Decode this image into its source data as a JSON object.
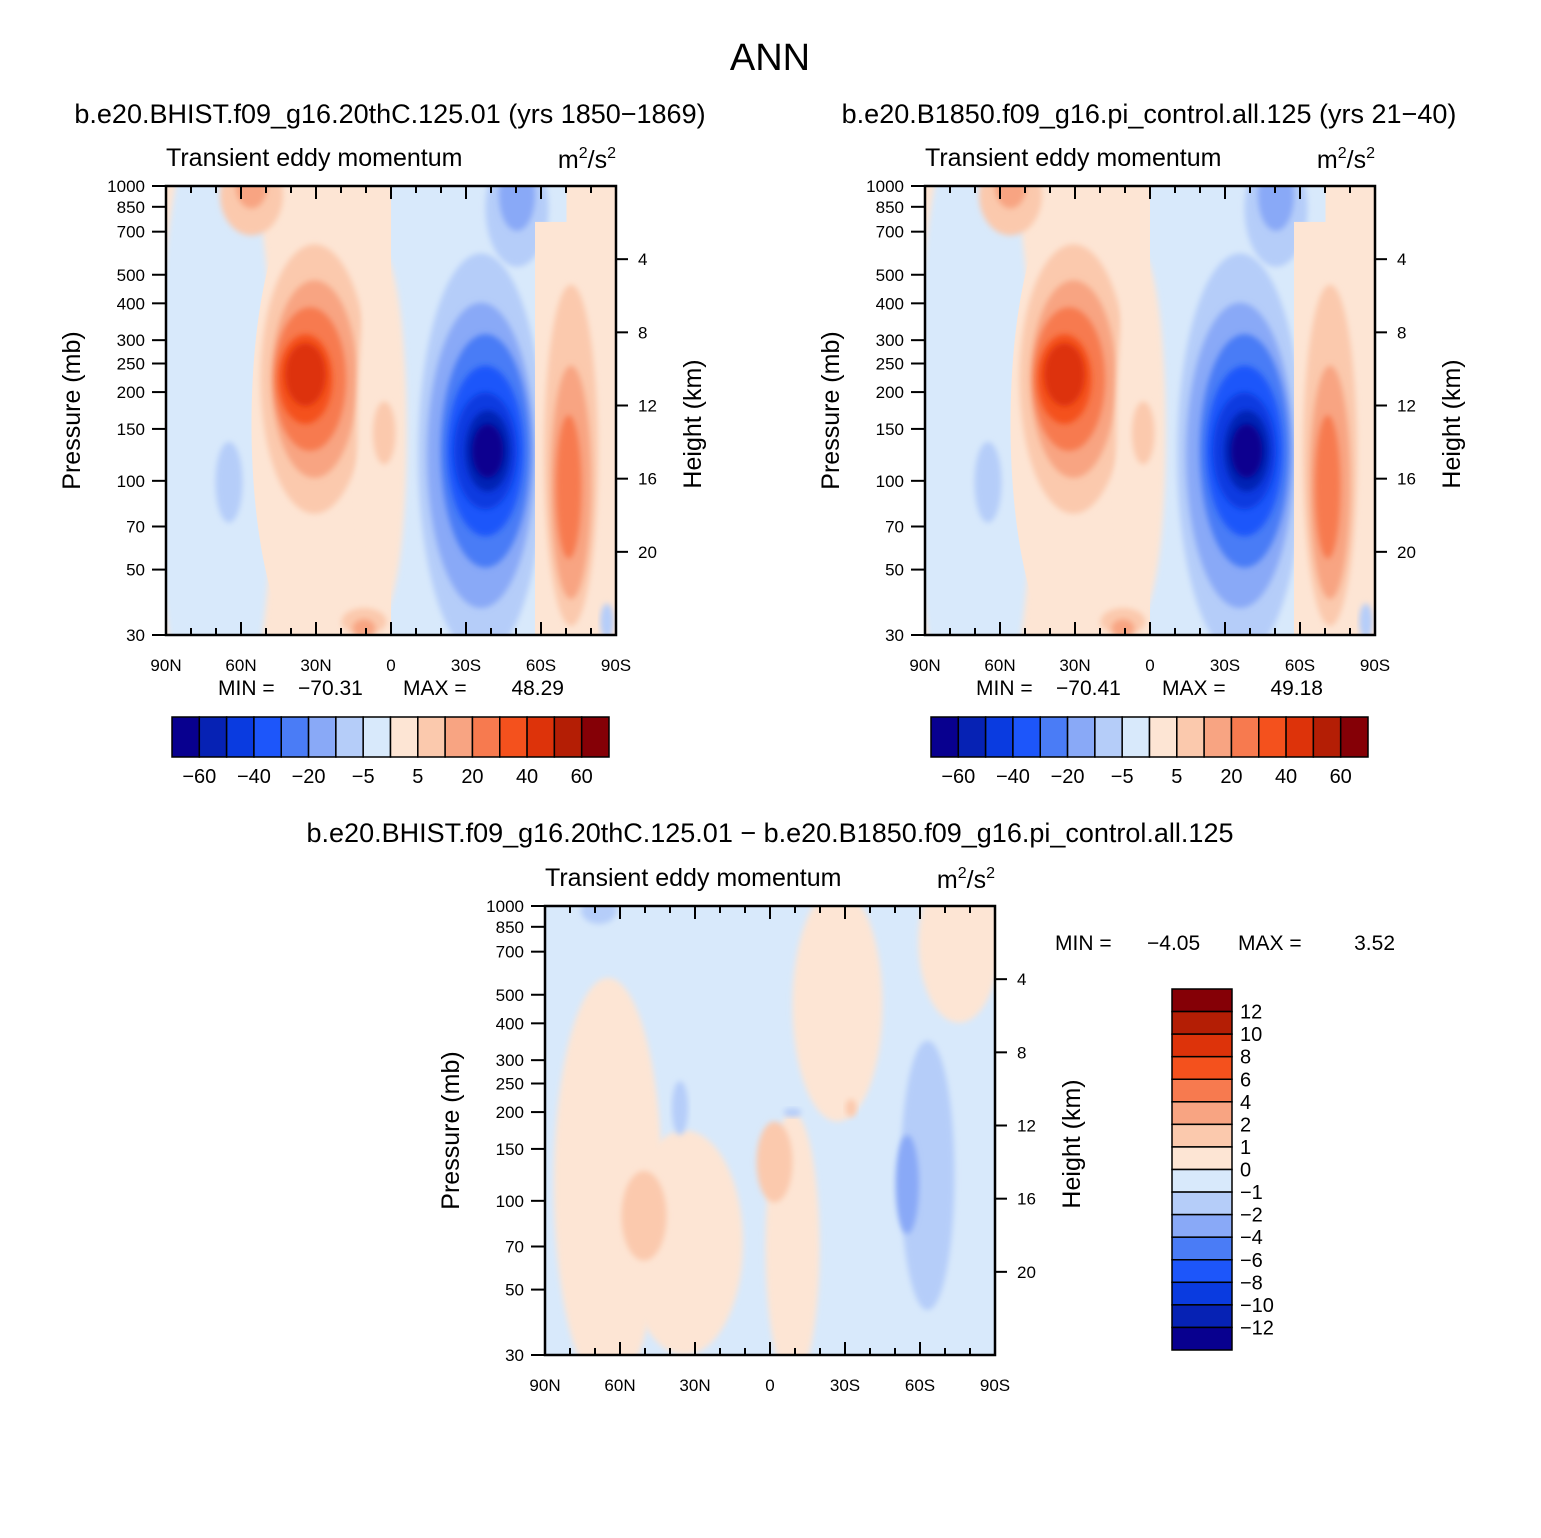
{
  "figure": {
    "title": "ANN"
  },
  "panels": [
    {
      "id": "test",
      "case_title": "b.e20.BHIST.f09_g16.20thC.125.01 (yrs 1850−1869)",
      "variable": "Transient eddy momentum",
      "units_base": "m",
      "units_mid": "/s",
      "units_sup": "2",
      "ylabel": "Pressure (mb)",
      "ylabel_right": "Height (km)",
      "stats": {
        "min_label": "MIN =",
        "min": "−70.31",
        "max_label": "MAX =",
        "max": "48.29"
      }
    },
    {
      "id": "control",
      "case_title": "b.e20.B1850.f09_g16.pi_control.all.125 (yrs 21−40)",
      "variable": "Transient eddy momentum",
      "units_base": "m",
      "units_mid": "/s",
      "units_sup": "2",
      "ylabel": "Pressure (mb)",
      "ylabel_right": "Height (km)",
      "stats": {
        "min_label": "MIN =",
        "min": "−70.41",
        "max_label": "MAX =",
        "max": "49.18"
      }
    },
    {
      "id": "diff",
      "case_title": "b.e20.BHIST.f09_g16.20thC.125.01 − b.e20.B1850.f09_g16.pi_control.all.125",
      "variable": "Transient eddy momentum",
      "units_base": "m",
      "units_mid": "/s",
      "units_sup": "2",
      "ylabel": "Pressure (mb)",
      "ylabel_right": "Height (km)",
      "stats": {
        "min_label": "MIN =",
        "min": "−4.05",
        "max_label": "MAX =",
        "max": "3.52"
      }
    }
  ],
  "chart_data": {
    "type": "heatmap",
    "x_ticks": [
      "90N",
      "60N",
      "30N",
      "0",
      "30S",
      "60S",
      "90S"
    ],
    "y_ticks": [
      "30",
      "50",
      "70",
      "100",
      "150",
      "200",
      "250",
      "300",
      "400",
      "500",
      "700",
      "850",
      "1000"
    ],
    "y_right_ticks": [
      "20",
      "16",
      "12",
      "8",
      "4"
    ],
    "ylim": [
      1000,
      30
    ],
    "y_scale": "log",
    "xlim": [
      90,
      -90
    ],
    "colorbar_main": {
      "orientation": "horizontal",
      "colors": [
        "#08008f",
        "#0622b4",
        "#0a3be0",
        "#1d56fa",
        "#4a7cf6",
        "#89a9f7",
        "#b5cdf9",
        "#d8e9fb",
        "#fde5d4",
        "#fbc9ad",
        "#f8a482",
        "#f77a4f",
        "#f4511d",
        "#dd330a",
        "#b41e05",
        "#850006"
      ],
      "labels": [
        "−60",
        "−40",
        "−20",
        "−5",
        "5",
        "20",
        "40",
        "60"
      ]
    },
    "colorbar_diff": {
      "orientation": "vertical",
      "colors": [
        "#850006",
        "#b41e05",
        "#dd330a",
        "#f4511d",
        "#f77a4f",
        "#f8a482",
        "#fbc9ad",
        "#fde5d4",
        "#d8e9fb",
        "#b5cdf9",
        "#89a9f7",
        "#4a7cf6",
        "#1d56fa",
        "#0a3be0",
        "#0622b4",
        "#08008f"
      ],
      "labels": [
        "12",
        "10",
        "8",
        "6",
        "4",
        "2",
        "1",
        "0",
        "−1",
        "−2",
        "−4",
        "−6",
        "−8",
        "−10",
        "−12"
      ]
    }
  }
}
